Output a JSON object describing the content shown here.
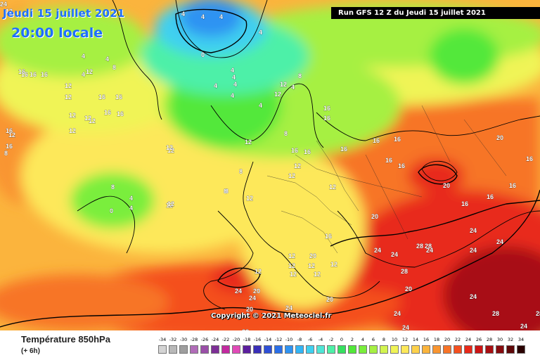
{
  "header": {
    "date_title": "Jeudi 15 juillet 2021",
    "local_time": "20:00 locale",
    "run_info": "Run GFS 12 Z du Jeudi 15 juillet 2021"
  },
  "map": {
    "copyright": "Copyright © 2021 Meteociel.fr",
    "contour_labels": [
      {
        "text": "12"
      },
      {
        "text": "4"
      },
      {
        "text": "4"
      },
      {
        "text": "4"
      },
      {
        "text": "0"
      },
      {
        "text": "4"
      },
      {
        "text": "16"
      },
      {
        "text": "4"
      },
      {
        "text": "4"
      },
      {
        "text": "4"
      },
      {
        "text": "8"
      },
      {
        "text": "4"
      },
      {
        "text": "12"
      },
      {
        "text": "16"
      },
      {
        "text": "16"
      },
      {
        "text": "12"
      },
      {
        "text": "12"
      },
      {
        "text": "12"
      },
      {
        "text": "16"
      },
      {
        "text": "16"
      },
      {
        "text": "16"
      },
      {
        "text": "16"
      },
      {
        "text": "12"
      },
      {
        "text": "12"
      },
      {
        "text": "16"
      },
      {
        "text": "8"
      },
      {
        "text": "12"
      },
      {
        "text": "12"
      },
      {
        "text": "16"
      },
      {
        "text": "12"
      },
      {
        "text": "16"
      },
      {
        "text": "12"
      },
      {
        "text": "8"
      },
      {
        "text": "12"
      },
      {
        "text": "4"
      },
      {
        "text": "4"
      },
      {
        "text": "0"
      },
      {
        "text": "4"
      },
      {
        "text": "4"
      },
      {
        "text": "4"
      },
      {
        "text": "12"
      },
      {
        "text": "12"
      },
      {
        "text": "12"
      },
      {
        "text": "8"
      },
      {
        "text": "16"
      },
      {
        "text": "16"
      },
      {
        "text": "16"
      },
      {
        "text": "16"
      },
      {
        "text": "12"
      },
      {
        "text": "12"
      },
      {
        "text": "12"
      },
      {
        "text": "16"
      },
      {
        "text": "8"
      },
      {
        "text": "8"
      },
      {
        "text": "12"
      },
      {
        "text": "16"
      },
      {
        "text": "16"
      },
      {
        "text": "16"
      },
      {
        "text": "16"
      },
      {
        "text": "20"
      },
      {
        "text": "16"
      },
      {
        "text": "8"
      },
      {
        "text": "4"
      },
      {
        "text": "4"
      },
      {
        "text": "4"
      },
      {
        "text": "8"
      },
      {
        "text": "12"
      },
      {
        "text": "20"
      },
      {
        "text": "16"
      },
      {
        "text": "16"
      },
      {
        "text": "20"
      },
      {
        "text": "16"
      },
      {
        "text": "16"
      },
      {
        "text": "12"
      },
      {
        "text": "12"
      },
      {
        "text": "12"
      },
      {
        "text": "12"
      },
      {
        "text": "12"
      },
      {
        "text": "12"
      },
      {
        "text": "20"
      },
      {
        "text": "12"
      },
      {
        "text": "24"
      },
      {
        "text": "24"
      },
      {
        "text": "20"
      },
      {
        "text": "24"
      },
      {
        "text": "28"
      },
      {
        "text": "28"
      },
      {
        "text": "24"
      },
      {
        "text": "24"
      },
      {
        "text": "24"
      },
      {
        "text": "20"
      },
      {
        "text": "24"
      },
      {
        "text": "24"
      },
      {
        "text": "24"
      },
      {
        "text": "20"
      },
      {
        "text": "20"
      },
      {
        "text": "24"
      },
      {
        "text": "24"
      },
      {
        "text": "24"
      },
      {
        "text": "28"
      },
      {
        "text": "28"
      },
      {
        "text": "24"
      },
      {
        "text": "28"
      },
      {
        "text": "28"
      },
      {
        "text": "28"
      },
      {
        "text": "24"
      }
    ]
  },
  "legend": {
    "parameter": "Température 850hPa",
    "step": "(+ 6h)",
    "scale_values": [
      "-34",
      "-32",
      "-30",
      "-28",
      "-26",
      "-24",
      "-22",
      "-20",
      "-18",
      "-16",
      "-14",
      "-12",
      "-10",
      "-8",
      "-6",
      "-4",
      "-2",
      "0",
      "2",
      "4",
      "6",
      "8",
      "10",
      "12",
      "14",
      "16",
      "18",
      "20",
      "22",
      "24",
      "26",
      "28",
      "30",
      "32",
      "34"
    ],
    "colors": [
      "#d4d4d4",
      "#b8b8b8",
      "#9e9e9e",
      "#b06cb8",
      "#9a4fa8",
      "#7d2f96",
      "#c22aa0",
      "#e14ab8",
      "#5b1f9e",
      "#3a2fb8",
      "#2e4fd6",
      "#2b6fe8",
      "#2f93f2",
      "#33b5f6",
      "#3fd0f0",
      "#4fe6d6",
      "#4ef0a8",
      "#36e060",
      "#52e83a",
      "#7aee3c",
      "#a6f043",
      "#d2f44f",
      "#f0f456",
      "#fde85a",
      "#fdd14b",
      "#fbb43d",
      "#f99531",
      "#f77428",
      "#f44f1f",
      "#e8291a",
      "#cc1515",
      "#a80f12",
      "#860b0e",
      "#5e0708",
      "#2a0000"
    ]
  }
}
